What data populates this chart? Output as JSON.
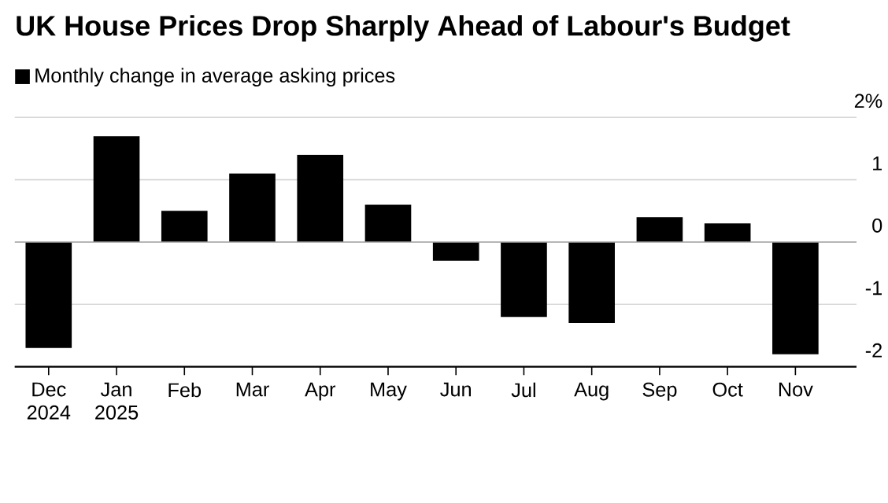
{
  "chart_data": {
    "type": "bar",
    "title": "UK House Prices Drop Sharply Ahead of Labour's Budget",
    "categories": [
      "Dec 2024",
      "Jan 2025",
      "Feb",
      "Mar",
      "Apr",
      "May",
      "Jun",
      "Jul",
      "Aug",
      "Sep",
      "Oct",
      "Nov"
    ],
    "series": [
      {
        "name": "Monthly change in average asking prices",
        "color": "#000000",
        "values": [
          -1.7,
          1.7,
          0.5,
          1.1,
          1.4,
          0.6,
          -0.3,
          -1.2,
          -1.3,
          0.4,
          0.3,
          -1.8
        ]
      }
    ],
    "ylim": [
      -2,
      2
    ],
    "yticks": [
      {
        "value": 2,
        "label": "2%"
      },
      1,
      0,
      -1,
      -2
    ],
    "grid": "y",
    "legend": "top left"
  }
}
